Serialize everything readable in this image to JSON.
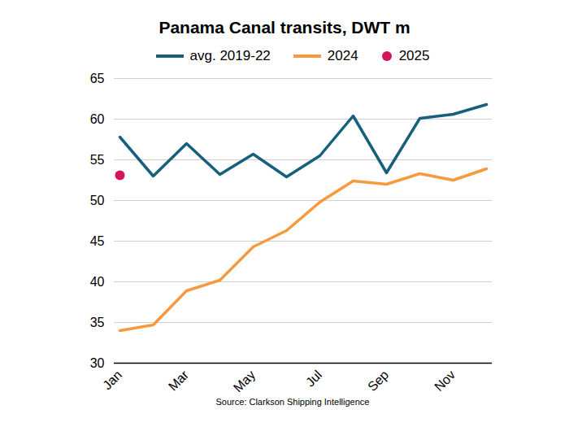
{
  "chart_data": {
    "type": "line",
    "title": "Panama Canal transits, DWT m",
    "caption": "Source: Clarkson Shipping Intelligence",
    "categories": [
      "Jan",
      null,
      "Mar",
      null,
      "May",
      null,
      "Jul",
      null,
      "Sep",
      null,
      "Nov",
      null
    ],
    "series": [
      {
        "name": "avg. 2019-22",
        "color": "#17607d",
        "type": "line",
        "values": [
          57.8,
          53.0,
          57.0,
          53.2,
          55.7,
          52.9,
          55.5,
          60.4,
          53.4,
          60.1,
          60.6,
          61.8
        ]
      },
      {
        "name": "2024",
        "color": "#f79a3e",
        "type": "line",
        "values": [
          34.0,
          34.7,
          38.9,
          40.2,
          44.3,
          46.3,
          49.8,
          52.4,
          52.0,
          53.3,
          52.5,
          53.9
        ]
      },
      {
        "name": "2025",
        "color": "#d4145a",
        "type": "scatter",
        "marker": "circle",
        "values": [
          53.1,
          null,
          null,
          null,
          null,
          null,
          null,
          null,
          null,
          null,
          null,
          null
        ]
      }
    ],
    "ylim": [
      30,
      65
    ],
    "yticks": [
      30,
      35,
      40,
      45,
      50,
      55,
      60,
      65
    ],
    "grid": true
  }
}
